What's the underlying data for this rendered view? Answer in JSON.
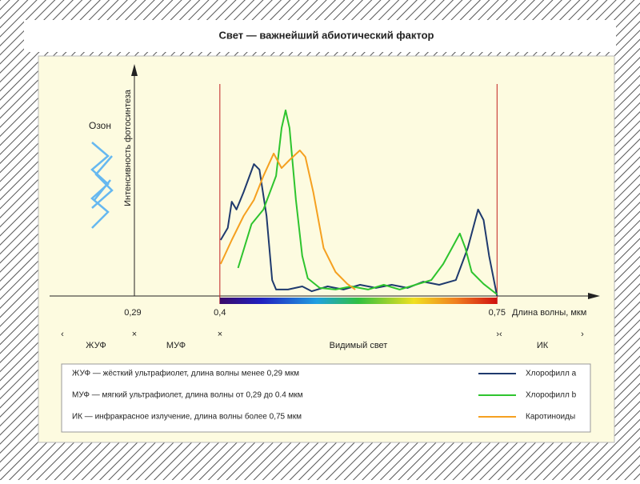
{
  "chart_data": {
    "type": "line",
    "title": "Свет — важнейший абиотический фактор",
    "y_label": "Интенсивность фотосинтеза",
    "x_label": "Длина волны, мкм",
    "annotation": "Озон",
    "xlim": [
      0.185,
      0.88
    ],
    "ylim": [
      0,
      100
    ],
    "xticks": [
      {
        "value": 0.29,
        "label": "0,29"
      },
      {
        "value": 0.4,
        "label": "0,4"
      },
      {
        "value": 0.75,
        "label": "0,75"
      }
    ],
    "regions": [
      "ЖУФ",
      "МУФ",
      "Видимый свет",
      "ИК"
    ],
    "notes": [
      "ЖУФ — жёсткий ультрафиолет, длина волны менее 0,29 мкм",
      "МУФ — мягкий ультрафиолет, длина волны от 0,29 до 0.4 мкм",
      "ИК — инфракрасное излучение, длина волны более 0,75 мкм"
    ],
    "series": [
      {
        "name": "Хлорофилл a",
        "color": "#1f3a6e",
        "x": [
          0.401,
          0.41,
          0.415,
          0.421,
          0.43,
          0.443,
          0.45,
          0.459,
          0.466,
          0.471,
          0.486,
          0.504,
          0.516,
          0.536,
          0.556,
          0.577,
          0.597,
          0.617,
          0.637,
          0.657,
          0.677,
          0.698,
          0.713,
          0.726,
          0.733,
          0.74,
          0.75
        ],
        "values": [
          25,
          30.4,
          42.1,
          38.6,
          46.4,
          58.9,
          56.4,
          35.7,
          7.1,
          2.9,
          2.9,
          4.3,
          2.1,
          4.3,
          2.9,
          5,
          3.6,
          5,
          3.6,
          6.4,
          5,
          7.1,
          21.4,
          38.6,
          33.9,
          17.9,
          0
        ]
      },
      {
        "name": "Хлорофилл b",
        "color": "#2ec42e",
        "x": [
          0.423,
          0.44,
          0.455,
          0.471,
          0.478,
          0.483,
          0.488,
          0.496,
          0.504,
          0.511,
          0.526,
          0.546,
          0.566,
          0.587,
          0.607,
          0.627,
          0.647,
          0.667,
          0.682,
          0.693,
          0.703,
          0.71,
          0.718,
          0.733,
          0.75
        ],
        "values": [
          12.5,
          32.1,
          38.6,
          53.6,
          75,
          82.9,
          75,
          42.9,
          17.9,
          7.9,
          3.6,
          2.9,
          4.3,
          2.9,
          5,
          2.9,
          5,
          7.1,
          14.3,
          21.4,
          27.9,
          21.4,
          10.7,
          5.4,
          0.7
        ]
      },
      {
        "name": "Каротиноиды",
        "color": "#f5a020",
        "x": [
          0.401,
          0.415,
          0.43,
          0.443,
          0.455,
          0.468,
          0.478,
          0.488,
          0.501,
          0.508,
          0.518,
          0.531,
          0.546,
          0.561,
          0.571
        ],
        "values": [
          14.3,
          25,
          35.7,
          42.9,
          53.6,
          63.6,
          57.1,
          60.7,
          65,
          62.1,
          46.4,
          21.4,
          10.7,
          5.4,
          2.9
        ]
      }
    ]
  }
}
